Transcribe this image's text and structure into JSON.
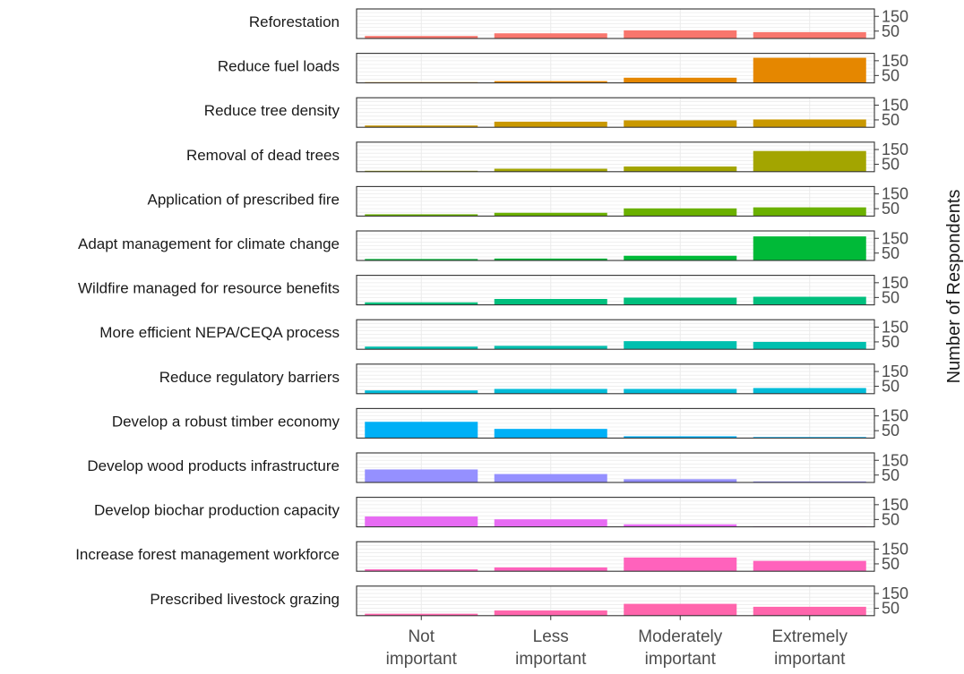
{
  "chart_data": {
    "type": "bar",
    "layout": "small-multiples (one horizontal panel per strategy, stacked vertically)",
    "categories": [
      "Not important",
      "Less important",
      "Moderately important",
      "Extremely important"
    ],
    "category_lines": [
      [
        "Not",
        "important"
      ],
      [
        "Less",
        "important"
      ],
      [
        "Moderately",
        "important"
      ],
      [
        "Extremely",
        "important"
      ]
    ],
    "ylabel": "Number of Respondents",
    "ylim": [
      0,
      200
    ],
    "yticks": [
      50,
      150
    ],
    "grid": true,
    "legend": "none",
    "series": [
      {
        "name": "Reforestation",
        "color": "#F8766D",
        "values": [
          17,
          35,
          55,
          43
        ]
      },
      {
        "name": "Reduce fuel loads",
        "color": "#E58700",
        "values": [
          5,
          12,
          35,
          170
        ]
      },
      {
        "name": "Reduce tree density",
        "color": "#C99800",
        "values": [
          12,
          38,
          47,
          53
        ]
      },
      {
        "name": "Removal of dead trees",
        "color": "#A3A500",
        "values": [
          6,
          20,
          35,
          140
        ]
      },
      {
        "name": "Application of prescribed fire",
        "color": "#6BB100",
        "values": [
          12,
          22,
          52,
          59
        ]
      },
      {
        "name": "Adapt management for climate change",
        "color": "#00BA38",
        "values": [
          10,
          13,
          32,
          163
        ]
      },
      {
        "name": "Wildfire managed for resource benefits",
        "color": "#00BF7D",
        "values": [
          17,
          40,
          49,
          55
        ]
      },
      {
        "name": "More efficient NEPA/CEQA process",
        "color": "#00C0AF",
        "values": [
          18,
          23,
          55,
          50
        ]
      },
      {
        "name": "Reduce regulatory barriers",
        "color": "#00BCD8",
        "values": [
          22,
          32,
          32,
          38
        ]
      },
      {
        "name": "Develop a robust timber economy",
        "color": "#00B0F6",
        "values": [
          110,
          62,
          12,
          7
        ]
      },
      {
        "name": "Develop wood products infrastructure",
        "color": "#9590FF",
        "values": [
          88,
          57,
          22,
          7
        ]
      },
      {
        "name": "Develop biochar production capacity",
        "color": "#E76BF3",
        "values": [
          70,
          51,
          17,
          4
        ]
      },
      {
        "name": "Increase forest management workforce",
        "color": "#FF62BC",
        "values": [
          13,
          26,
          93,
          70
        ]
      },
      {
        "name": "Prescribed livestock grazing",
        "color": "#FF65AC",
        "values": [
          13,
          35,
          80,
          60
        ]
      }
    ]
  }
}
